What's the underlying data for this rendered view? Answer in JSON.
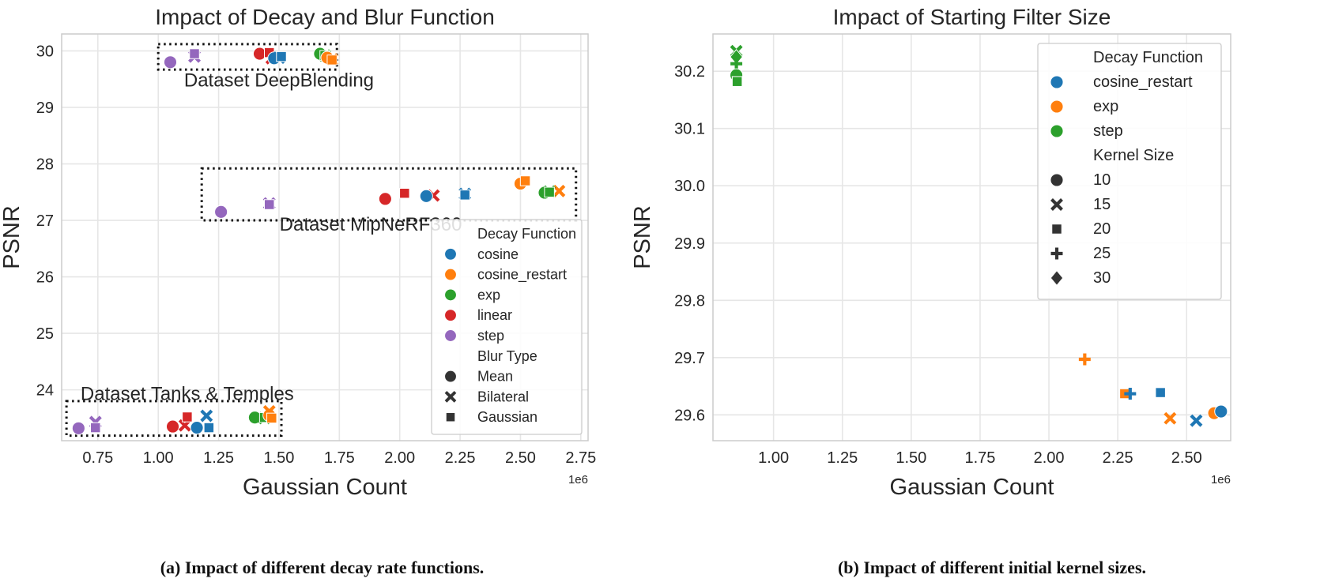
{
  "captions": {
    "a": "(a) Impact of different decay rate functions.",
    "b": "(b) Impact of different initial kernel sizes."
  },
  "chart_data": [
    {
      "type": "scatter",
      "title": "Impact of Decay and Blur Function",
      "xlabel": "Gaussian Count",
      "ylabel": "PSNR",
      "x_scale_label": "1e6",
      "xlim": [
        0.6,
        2.78
      ],
      "ylim": [
        23.1,
        30.3
      ],
      "xticks": [
        0.75,
        1.0,
        1.25,
        1.5,
        1.75,
        2.0,
        2.25,
        2.5,
        2.75
      ],
      "xtick_labels": [
        "0.75",
        "1.00",
        "1.25",
        "1.50",
        "1.75",
        "2.00",
        "2.25",
        "2.50",
        "2.75"
      ],
      "yticks": [
        24,
        25,
        26,
        27,
        28,
        29,
        30
      ],
      "ytick_labels": [
        "24",
        "25",
        "26",
        "27",
        "28",
        "29",
        "30"
      ],
      "hue": {
        "cosine": "#1f77b4",
        "cosine_restart": "#ff7f0e",
        "exp": "#2ca02c",
        "linear": "#d62728",
        "step": "#9467bd"
      },
      "annotations": [
        {
          "text": "Dataset DeepBlending",
          "x": 1.5,
          "y": 29.48,
          "box": [
            1.0,
            29.67,
            1.74,
            30.12
          ]
        },
        {
          "text": "Dataset MipNeRF360",
          "x": 1.88,
          "y": 26.93,
          "box": [
            1.18,
            27.0,
            2.73,
            27.92
          ]
        },
        {
          "text": "Dataset Tanks & Temples",
          "x": 1.12,
          "y": 23.93,
          "box": [
            0.62,
            23.19,
            1.51,
            23.8
          ]
        }
      ],
      "legend": {
        "position": "lower right",
        "hue_title": "Decay Function",
        "hue_entries": [
          "cosine",
          "cosine_restart",
          "exp",
          "linear",
          "step"
        ],
        "style_title": "Blur Type",
        "style_entries": [
          {
            "label": "Mean",
            "marker": "circle"
          },
          {
            "label": "Bilateral",
            "marker": "x"
          },
          {
            "label": "Gaussian",
            "marker": "square"
          }
        ]
      },
      "points": [
        {
          "x": 1.05,
          "y": 29.8,
          "hue": "step",
          "marker": "circle"
        },
        {
          "x": 1.15,
          "y": 29.9,
          "hue": "step",
          "marker": "x"
        },
        {
          "x": 1.15,
          "y": 29.95,
          "hue": "step",
          "marker": "square"
        },
        {
          "x": 1.42,
          "y": 29.95,
          "hue": "linear",
          "marker": "circle"
        },
        {
          "x": 1.47,
          "y": 29.87,
          "hue": "linear",
          "marker": "x"
        },
        {
          "x": 1.46,
          "y": 29.97,
          "hue": "linear",
          "marker": "square"
        },
        {
          "x": 1.48,
          "y": 29.87,
          "hue": "cosine",
          "marker": "circle"
        },
        {
          "x": 1.5,
          "y": 29.88,
          "hue": "cosine",
          "marker": "x"
        },
        {
          "x": 1.51,
          "y": 29.9,
          "hue": "cosine",
          "marker": "square"
        },
        {
          "x": 1.67,
          "y": 29.95,
          "hue": "exp",
          "marker": "circle"
        },
        {
          "x": 1.69,
          "y": 29.92,
          "hue": "exp",
          "marker": "x"
        },
        {
          "x": 1.69,
          "y": 29.92,
          "hue": "exp",
          "marker": "square"
        },
        {
          "x": 1.7,
          "y": 29.88,
          "hue": "cosine_restart",
          "marker": "circle"
        },
        {
          "x": 1.72,
          "y": 29.85,
          "hue": "cosine_restart",
          "marker": "x"
        },
        {
          "x": 1.72,
          "y": 29.84,
          "hue": "cosine_restart",
          "marker": "square"
        },
        {
          "x": 1.26,
          "y": 27.15,
          "hue": "step",
          "marker": "circle"
        },
        {
          "x": 1.46,
          "y": 27.3,
          "hue": "step",
          "marker": "x"
        },
        {
          "x": 1.46,
          "y": 27.28,
          "hue": "step",
          "marker": "square"
        },
        {
          "x": 1.94,
          "y": 27.38,
          "hue": "linear",
          "marker": "circle"
        },
        {
          "x": 2.14,
          "y": 27.44,
          "hue": "linear",
          "marker": "x"
        },
        {
          "x": 2.02,
          "y": 27.48,
          "hue": "linear",
          "marker": "square"
        },
        {
          "x": 2.11,
          "y": 27.43,
          "hue": "cosine",
          "marker": "circle"
        },
        {
          "x": 2.27,
          "y": 27.47,
          "hue": "cosine",
          "marker": "x"
        },
        {
          "x": 2.27,
          "y": 27.45,
          "hue": "cosine",
          "marker": "square"
        },
        {
          "x": 2.5,
          "y": 27.65,
          "hue": "cosine_restart",
          "marker": "circle"
        },
        {
          "x": 2.66,
          "y": 27.52,
          "hue": "cosine_restart",
          "marker": "x"
        },
        {
          "x": 2.52,
          "y": 27.7,
          "hue": "cosine_restart",
          "marker": "square"
        },
        {
          "x": 2.6,
          "y": 27.49,
          "hue": "exp",
          "marker": "circle"
        },
        {
          "x": 2.62,
          "y": 27.51,
          "hue": "exp",
          "marker": "x"
        },
        {
          "x": 2.62,
          "y": 27.5,
          "hue": "exp",
          "marker": "square"
        },
        {
          "x": 0.67,
          "y": 23.32,
          "hue": "step",
          "marker": "circle"
        },
        {
          "x": 0.74,
          "y": 23.43,
          "hue": "step",
          "marker": "x"
        },
        {
          "x": 0.74,
          "y": 23.33,
          "hue": "step",
          "marker": "square"
        },
        {
          "x": 1.06,
          "y": 23.35,
          "hue": "linear",
          "marker": "circle"
        },
        {
          "x": 1.11,
          "y": 23.37,
          "hue": "linear",
          "marker": "x"
        },
        {
          "x": 1.12,
          "y": 23.52,
          "hue": "linear",
          "marker": "square"
        },
        {
          "x": 1.16,
          "y": 23.33,
          "hue": "cosine",
          "marker": "circle"
        },
        {
          "x": 1.2,
          "y": 23.54,
          "hue": "cosine",
          "marker": "x"
        },
        {
          "x": 1.21,
          "y": 23.33,
          "hue": "cosine",
          "marker": "square"
        },
        {
          "x": 1.4,
          "y": 23.51,
          "hue": "exp",
          "marker": "circle"
        },
        {
          "x": 1.44,
          "y": 23.5,
          "hue": "exp",
          "marker": "x"
        },
        {
          "x": 1.44,
          "y": 23.51,
          "hue": "exp",
          "marker": "square"
        },
        {
          "x": 1.46,
          "y": 23.55,
          "hue": "cosine_restart",
          "marker": "circle"
        },
        {
          "x": 1.46,
          "y": 23.62,
          "hue": "cosine_restart",
          "marker": "x"
        },
        {
          "x": 1.47,
          "y": 23.5,
          "hue": "cosine_restart",
          "marker": "square"
        }
      ]
    },
    {
      "type": "scatter",
      "title": "Impact of Starting Filter Size",
      "xlabel": "Gaussian Count",
      "ylabel": "PSNR",
      "x_scale_label": "1e6",
      "xlim": [
        0.78,
        2.66
      ],
      "ylim": [
        29.555,
        30.265
      ],
      "xticks": [
        1.0,
        1.25,
        1.5,
        1.75,
        2.0,
        2.25,
        2.5
      ],
      "xtick_labels": [
        "1.00",
        "1.25",
        "1.50",
        "1.75",
        "2.00",
        "2.25",
        "2.50"
      ],
      "yticks": [
        29.6,
        29.7,
        29.8,
        29.9,
        30.0,
        30.1,
        30.2
      ],
      "ytick_labels": [
        "29.6",
        "29.7",
        "29.8",
        "29.9",
        "30.0",
        "30.1",
        "30.2"
      ],
      "hue": {
        "cosine_restart": "#1f77b4",
        "exp": "#ff7f0e",
        "step": "#2ca02c"
      },
      "legend": {
        "position": "upper right",
        "hue_title": "Decay Function",
        "hue_entries": [
          "cosine_restart",
          "exp",
          "step"
        ],
        "style_title": "Kernel Size",
        "style_entries": [
          {
            "label": "10",
            "marker": "circle"
          },
          {
            "label": "15",
            "marker": "x"
          },
          {
            "label": "20",
            "marker": "square"
          },
          {
            "label": "25",
            "marker": "plus"
          },
          {
            "label": "30",
            "marker": "diamond"
          }
        ]
      },
      "points": [
        {
          "x": 0.865,
          "y": 30.235,
          "hue": "step",
          "marker": "x"
        },
        {
          "x": 0.865,
          "y": 30.225,
          "hue": "step",
          "marker": "diamond"
        },
        {
          "x": 0.865,
          "y": 30.213,
          "hue": "step",
          "marker": "plus"
        },
        {
          "x": 0.865,
          "y": 30.193,
          "hue": "step",
          "marker": "circle"
        },
        {
          "x": 0.868,
          "y": 30.182,
          "hue": "exp",
          "marker": "square"
        },
        {
          "x": 0.868,
          "y": 30.182,
          "hue": "step",
          "marker": "square"
        },
        {
          "x": 2.13,
          "y": 29.697,
          "hue": "exp",
          "marker": "plus"
        },
        {
          "x": 2.275,
          "y": 29.637,
          "hue": "exp",
          "marker": "square"
        },
        {
          "x": 2.295,
          "y": 29.637,
          "hue": "cosine_restart",
          "marker": "plus"
        },
        {
          "x": 2.405,
          "y": 29.639,
          "hue": "cosine_restart",
          "marker": "square"
        },
        {
          "x": 2.44,
          "y": 29.594,
          "hue": "exp",
          "marker": "x"
        },
        {
          "x": 2.535,
          "y": 29.59,
          "hue": "cosine_restart",
          "marker": "x"
        },
        {
          "x": 2.6,
          "y": 29.603,
          "hue": "exp",
          "marker": "circle"
        },
        {
          "x": 2.625,
          "y": 29.606,
          "hue": "cosine_restart",
          "marker": "circle"
        }
      ]
    }
  ]
}
